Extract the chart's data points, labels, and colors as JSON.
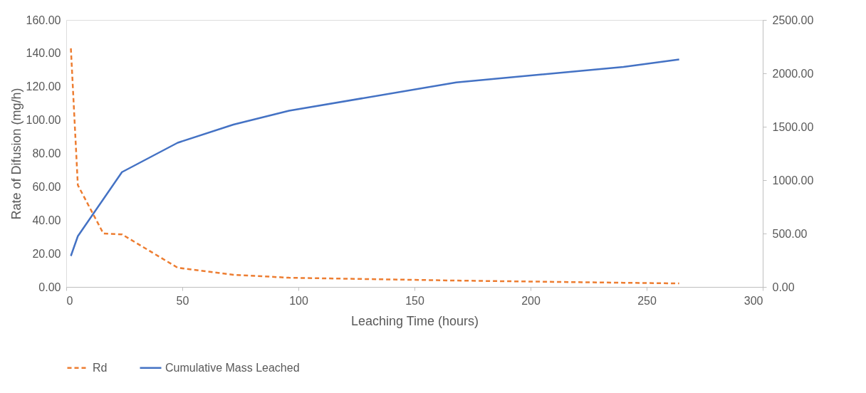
{
  "chart_data": {
    "type": "line",
    "xlabel": "Leaching Time (hours)",
    "ylabel": "Rate of Difusion (mg/h)",
    "xlim": [
      0,
      300
    ],
    "xticks": [
      0,
      50,
      100,
      150,
      200,
      250,
      300
    ],
    "ylim": [
      0,
      160
    ],
    "yticks": [
      {
        "value": 0,
        "label": "0.00"
      },
      {
        "value": 20,
        "label": "20.00"
      },
      {
        "value": 40,
        "label": "40.00"
      },
      {
        "value": 60,
        "label": "60.00"
      },
      {
        "value": 80,
        "label": "80.00"
      },
      {
        "value": 100,
        "label": "100.00"
      },
      {
        "value": 120,
        "label": "120.00"
      },
      {
        "value": 140,
        "label": "140.00"
      },
      {
        "value": 160,
        "label": "160.00"
      }
    ],
    "y2lim": [
      0,
      2500
    ],
    "y2ticks": [
      {
        "value": 0,
        "label": "0.00"
      },
      {
        "value": 500,
        "label": "500.00"
      },
      {
        "value": 1000,
        "label": "1000.00"
      },
      {
        "value": 1500,
        "label": "1500.00"
      },
      {
        "value": 2000,
        "label": "2000.00"
      },
      {
        "value": 2500,
        "label": "2500.00"
      }
    ],
    "grid": false,
    "legend": "bottom",
    "marker": "none",
    "series": [
      {
        "name": "Rd",
        "color": "#ed7d31",
        "line_style": "dashed",
        "x": [
          2,
          5,
          16,
          24,
          48,
          72,
          96,
          168,
          240,
          264
        ],
        "values": [
          143,
          61,
          32,
          31.5,
          11.5,
          7.3,
          5.5,
          3.8,
          2.5,
          2.1
        ]
      },
      {
        "name": "Cumulative Mass Leached",
        "color": "#4472c4",
        "line_style": "solid",
        "axis": "y2",
        "x": [
          2,
          5,
          24,
          48,
          72,
          96,
          168,
          240,
          264
        ],
        "values": [
          290,
          475,
          1075,
          1350,
          1520,
          1650,
          1915,
          2060,
          2130
        ]
      }
    ]
  }
}
